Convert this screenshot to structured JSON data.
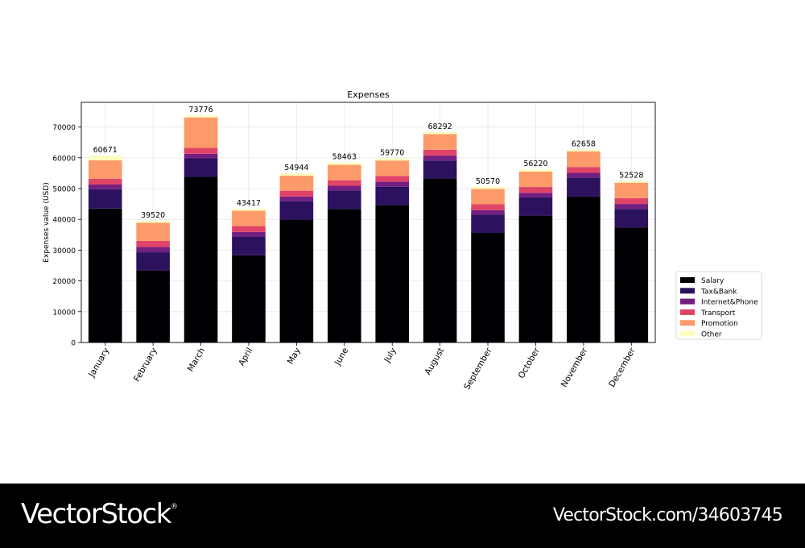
{
  "chart_data": {
    "type": "bar",
    "stacked": true,
    "title": "Expenses",
    "xlabel": "",
    "ylabel": "Expenses value (USD)",
    "ylim": [
      0,
      78000
    ],
    "yticks": [
      0,
      10000,
      20000,
      30000,
      40000,
      50000,
      60000,
      70000
    ],
    "grid": true,
    "legend_position": "outside-right",
    "categories": [
      "January",
      "February",
      "March",
      "April",
      "May",
      "June",
      "July",
      "August",
      "September",
      "October",
      "November",
      "December"
    ],
    "totals": [
      60671,
      39520,
      73776,
      43417,
      54944,
      58463,
      59770,
      68292,
      50570,
      56220,
      62658,
      52528
    ],
    "series": [
      {
        "name": "Salary",
        "color": "#000004",
        "values": [
          43500,
          23400,
          53800,
          28300,
          39900,
          43400,
          44700,
          53300,
          35600,
          41200,
          47400,
          37400
        ]
      },
      {
        "name": "Tax&Bank",
        "color": "#2c115f",
        "values": [
          6300,
          5900,
          6000,
          6100,
          6000,
          6000,
          5900,
          5800,
          5900,
          5900,
          6200,
          6000
        ]
      },
      {
        "name": "Internet&Phone",
        "color": "#721f81",
        "values": [
          1500,
          1700,
          1500,
          1500,
          1500,
          1500,
          1600,
          1600,
          1500,
          1500,
          1500,
          1600
        ]
      },
      {
        "name": "Transport",
        "color": "#df4468",
        "values": [
          1900,
          2000,
          1900,
          1900,
          1900,
          1800,
          1900,
          1900,
          1900,
          1900,
          1900,
          1900
        ]
      },
      {
        "name": "Promotion",
        "color": "#fd9a6a",
        "values": [
          6000,
          5900,
          9900,
          5000,
          4900,
          5000,
          5000,
          5100,
          5000,
          5000,
          5100,
          5000
        ]
      },
      {
        "name": "Other",
        "color": "#fcfdbf",
        "values": [
          1471,
          620,
          676,
          617,
          744,
          763,
          670,
          592,
          670,
          720,
          558,
          628
        ]
      }
    ]
  },
  "footer": {
    "brand": "VectorStock",
    "reg_mark": "®",
    "image_id": "VectorStock.com/34603745"
  }
}
